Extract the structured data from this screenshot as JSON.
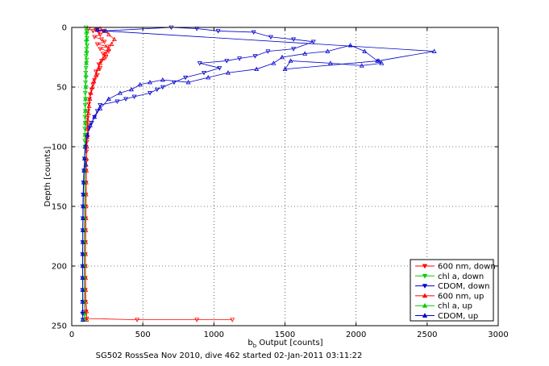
{
  "chart_data": {
    "type": "scatter",
    "title": "",
    "xlabel": "b",
    "xlabel_subscript": "b",
    "xlabel_suffix": " Output [counts]",
    "ylabel": "Depth [counts]",
    "caption": "SG502 RossSea Nov 2010, dive 462 started 02-Jan-2011 03:11:22",
    "xlim": [
      0,
      3000
    ],
    "ylim": [
      0,
      250
    ],
    "y_reversed": true,
    "x_ticks": [
      0,
      500,
      1000,
      1500,
      2000,
      2500,
      3000
    ],
    "y_ticks": [
      0,
      50,
      100,
      150,
      200,
      250
    ],
    "grid": true,
    "legend_position": "bottom-right",
    "series": [
      {
        "name": "600 nm, down",
        "color": "#ff0000",
        "marker": "triangle-down",
        "points": [
          [
            120,
            1
          ],
          [
            150,
            3
          ],
          [
            170,
            2
          ],
          [
            190,
            4
          ],
          [
            200,
            6
          ],
          [
            160,
            8
          ],
          [
            210,
            10
          ],
          [
            230,
            12
          ],
          [
            180,
            14
          ],
          [
            250,
            16
          ],
          [
            200,
            18
          ],
          [
            260,
            20
          ],
          [
            220,
            22
          ],
          [
            240,
            25
          ],
          [
            210,
            28
          ],
          [
            190,
            31
          ],
          [
            200,
            34
          ],
          [
            170,
            37
          ],
          [
            180,
            40
          ],
          [
            160,
            44
          ],
          [
            150,
            48
          ],
          [
            140,
            52
          ],
          [
            130,
            56
          ],
          [
            125,
            60
          ],
          [
            120,
            64
          ],
          [
            115,
            70
          ],
          [
            110,
            76
          ],
          [
            110,
            82
          ],
          [
            108,
            90
          ],
          [
            106,
            96
          ],
          [
            104,
            104
          ],
          [
            102,
            112
          ],
          [
            100,
            120
          ],
          [
            100,
            130
          ],
          [
            98,
            140
          ],
          [
            98,
            150
          ],
          [
            97,
            160
          ],
          [
            96,
            170
          ],
          [
            96,
            180
          ],
          [
            95,
            190
          ],
          [
            95,
            200
          ],
          [
            95,
            210
          ],
          [
            95,
            220
          ],
          [
            96,
            230
          ],
          [
            100,
            238
          ],
          [
            105,
            244
          ],
          [
            460,
            245
          ],
          [
            880,
            245
          ],
          [
            1130,
            245
          ]
        ]
      },
      {
        "name": "chl a, down",
        "color": "#00cc00",
        "marker": "triangle-down",
        "points": [
          [
            100,
            0
          ],
          [
            105,
            3
          ],
          [
            103,
            6
          ],
          [
            107,
            9
          ],
          [
            102,
            12
          ],
          [
            108,
            15
          ],
          [
            104,
            18
          ],
          [
            106,
            21
          ],
          [
            101,
            24
          ],
          [
            105,
            27
          ],
          [
            103,
            30
          ],
          [
            100,
            34
          ],
          [
            98,
            38
          ],
          [
            100,
            42
          ],
          [
            97,
            46
          ],
          [
            99,
            50
          ],
          [
            95,
            55
          ],
          [
            97,
            60
          ],
          [
            94,
            65
          ],
          [
            96,
            70
          ],
          [
            93,
            75
          ],
          [
            95,
            80
          ],
          [
            92,
            85
          ],
          [
            94,
            90
          ],
          [
            91,
            95
          ],
          [
            93,
            100
          ],
          [
            90,
            110
          ],
          [
            92,
            120
          ],
          [
            89,
            130
          ],
          [
            91,
            140
          ],
          [
            88,
            150
          ],
          [
            90,
            160
          ],
          [
            87,
            170
          ],
          [
            89,
            180
          ],
          [
            86,
            190
          ],
          [
            88,
            200
          ],
          [
            86,
            210
          ],
          [
            87,
            220
          ],
          [
            86,
            230
          ],
          [
            88,
            240
          ],
          [
            90,
            245
          ]
        ]
      },
      {
        "name": "CDOM, down",
        "color": "#0000cc",
        "marker": "triangle-down",
        "points": [
          [
            180,
            2
          ],
          [
            220,
            3
          ],
          [
            700,
            0
          ],
          [
            880,
            1
          ],
          [
            1030,
            3
          ],
          [
            1280,
            4
          ],
          [
            1400,
            8
          ],
          [
            1560,
            10
          ],
          [
            1700,
            12
          ],
          [
            1560,
            18
          ],
          [
            1380,
            20
          ],
          [
            1290,
            24
          ],
          [
            1180,
            26
          ],
          [
            1090,
            28
          ],
          [
            900,
            30
          ],
          [
            1040,
            34
          ],
          [
            930,
            38
          ],
          [
            800,
            42
          ],
          [
            720,
            46
          ],
          [
            640,
            50
          ],
          [
            600,
            52
          ],
          [
            550,
            55
          ],
          [
            440,
            58
          ],
          [
            380,
            60
          ],
          [
            320,
            62
          ],
          [
            200,
            65
          ],
          [
            180,
            70
          ],
          [
            160,
            75
          ],
          [
            140,
            80
          ],
          [
            120,
            85
          ],
          [
            110,
            92
          ],
          [
            100,
            100
          ],
          [
            90,
            110
          ],
          [
            85,
            120
          ],
          [
            82,
            130
          ],
          [
            80,
            140
          ],
          [
            78,
            150
          ],
          [
            78,
            160
          ],
          [
            77,
            170
          ],
          [
            77,
            180
          ],
          [
            76,
            190
          ],
          [
            76,
            200
          ],
          [
            76,
            210
          ],
          [
            76,
            220
          ],
          [
            76,
            230
          ],
          [
            77,
            240
          ],
          [
            78,
            245
          ]
        ]
      },
      {
        "name": "600 nm, up",
        "color": "#ff0000",
        "marker": "triangle-up",
        "points": [
          [
            105,
            245
          ],
          [
            104,
            238
          ],
          [
            100,
            230
          ],
          [
            98,
            220
          ],
          [
            97,
            210
          ],
          [
            96,
            200
          ],
          [
            97,
            190
          ],
          [
            98,
            180
          ],
          [
            99,
            170
          ],
          [
            100,
            160
          ],
          [
            100,
            150
          ],
          [
            101,
            140
          ],
          [
            102,
            130
          ],
          [
            103,
            120
          ],
          [
            104,
            110
          ],
          [
            106,
            100
          ],
          [
            108,
            92
          ],
          [
            110,
            85
          ],
          [
            114,
            78
          ],
          [
            118,
            72
          ],
          [
            122,
            66
          ],
          [
            128,
            60
          ],
          [
            135,
            55
          ],
          [
            145,
            50
          ],
          [
            155,
            45
          ],
          [
            170,
            40
          ],
          [
            185,
            35
          ],
          [
            200,
            30
          ],
          [
            220,
            26
          ],
          [
            240,
            22
          ],
          [
            260,
            18
          ],
          [
            280,
            14
          ],
          [
            300,
            10
          ],
          [
            260,
            6
          ],
          [
            230,
            3
          ],
          [
            200,
            1
          ]
        ]
      },
      {
        "name": "chl a, up",
        "color": "#00cc00",
        "marker": "triangle-up",
        "points": [
          [
            90,
            245
          ],
          [
            88,
            240
          ],
          [
            87,
            230
          ],
          [
            86,
            220
          ],
          [
            87,
            210
          ],
          [
            88,
            200
          ],
          [
            88,
            190
          ],
          [
            89,
            180
          ],
          [
            89,
            170
          ],
          [
            90,
            160
          ],
          [
            90,
            150
          ],
          [
            91,
            140
          ],
          [
            91,
            130
          ],
          [
            92,
            120
          ],
          [
            92,
            110
          ],
          [
            93,
            100
          ],
          [
            94,
            90
          ],
          [
            95,
            80
          ],
          [
            96,
            70
          ],
          [
            97,
            60
          ],
          [
            98,
            50
          ],
          [
            100,
            40
          ],
          [
            102,
            30
          ],
          [
            104,
            20
          ],
          [
            106,
            10
          ],
          [
            108,
            3
          ]
        ]
      },
      {
        "name": "CDOM, up",
        "color": "#0000cc",
        "marker": "triangle-up",
        "points": [
          [
            78,
            245
          ],
          [
            77,
            238
          ],
          [
            76,
            230
          ],
          [
            76,
            220
          ],
          [
            76,
            210
          ],
          [
            77,
            200
          ],
          [
            77,
            190
          ],
          [
            78,
            180
          ],
          [
            78,
            170
          ],
          [
            79,
            160
          ],
          [
            80,
            150
          ],
          [
            82,
            140
          ],
          [
            84,
            130
          ],
          [
            86,
            120
          ],
          [
            100,
            115
          ],
          [
            90,
            110
          ],
          [
            95,
            100
          ],
          [
            110,
            90
          ],
          [
            130,
            82
          ],
          [
            160,
            75
          ],
          [
            200,
            68
          ],
          [
            260,
            60
          ],
          [
            340,
            55
          ],
          [
            420,
            52
          ],
          [
            480,
            48
          ],
          [
            550,
            46
          ],
          [
            640,
            44
          ],
          [
            820,
            46
          ],
          [
            960,
            42
          ],
          [
            1100,
            38
          ],
          [
            1300,
            35
          ],
          [
            1420,
            30
          ],
          [
            1480,
            25
          ],
          [
            1640,
            22
          ],
          [
            1800,
            20
          ],
          [
            1960,
            15
          ],
          [
            2060,
            20
          ],
          [
            2150,
            28
          ],
          [
            2180,
            30
          ],
          [
            2040,
            32
          ],
          [
            1820,
            30
          ],
          [
            1540,
            28
          ],
          [
            1500,
            35
          ],
          [
            2160,
            28
          ],
          [
            2550,
            20
          ],
          [
            240,
            3
          ],
          [
            180,
            2
          ]
        ]
      }
    ]
  }
}
